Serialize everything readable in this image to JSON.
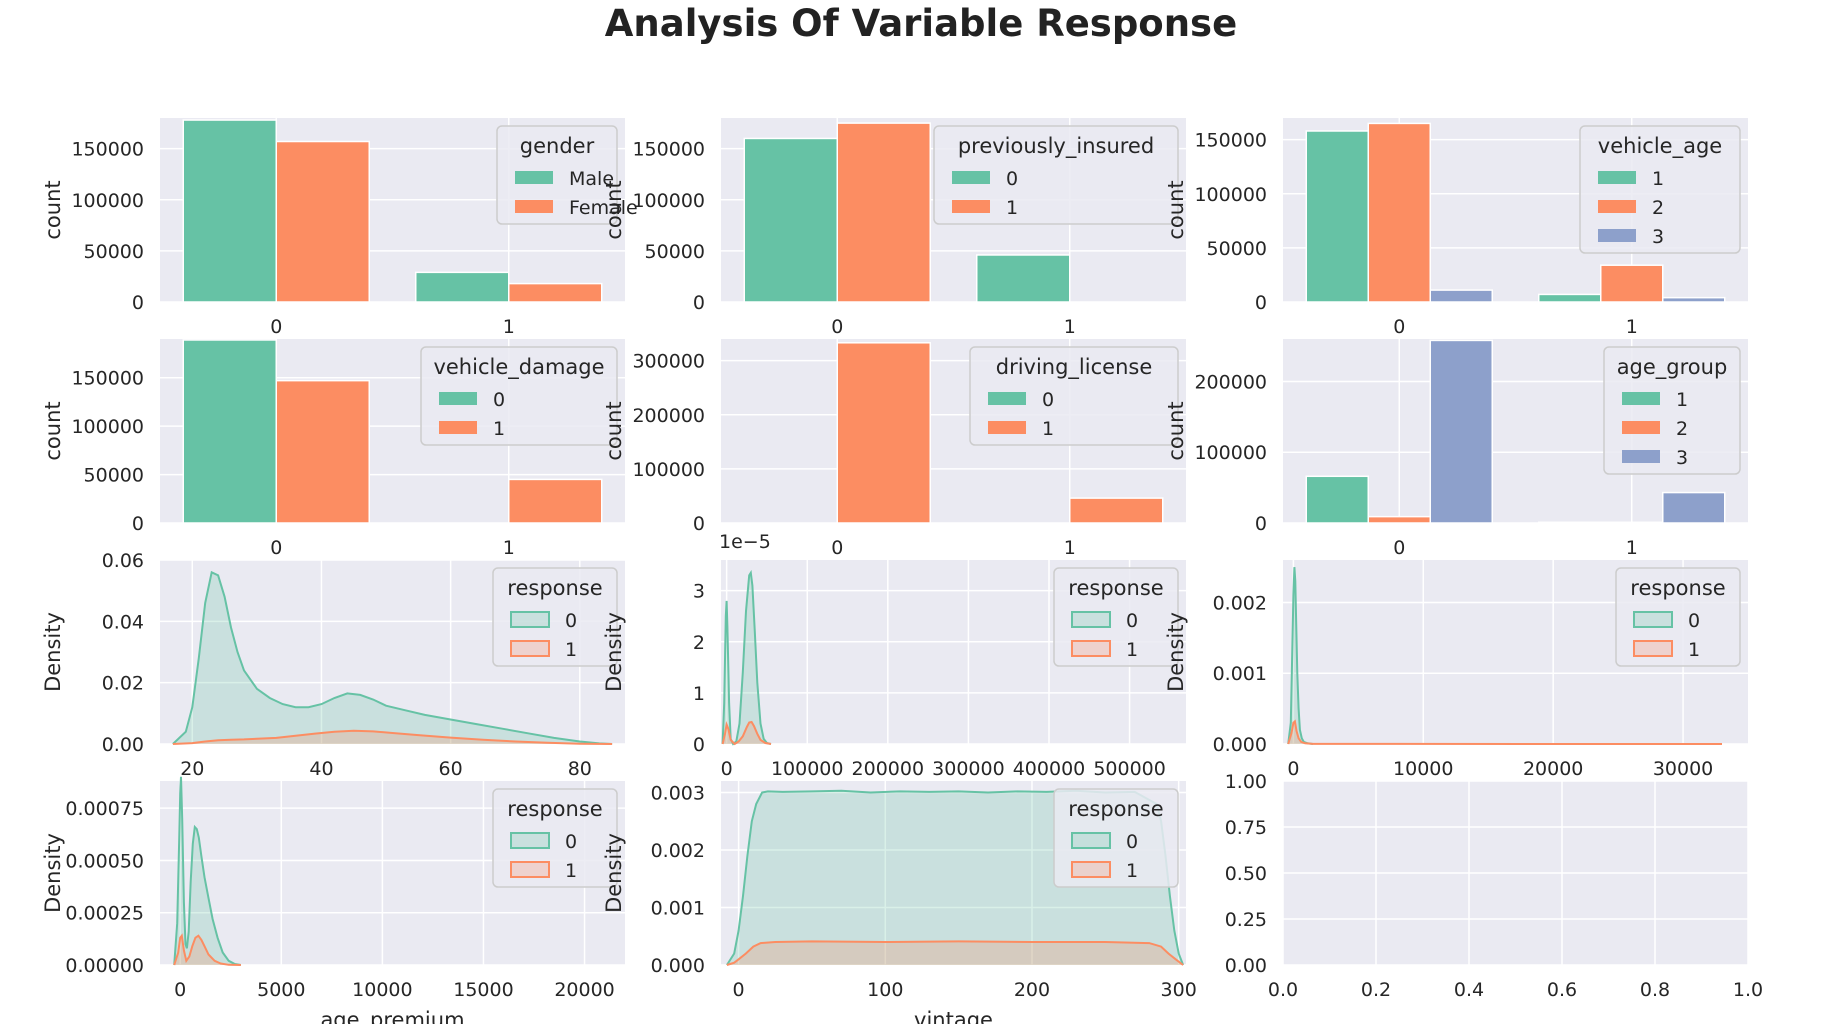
{
  "title": "Analysis Of Variable Response",
  "colors": {
    "c0": "#66c2a5",
    "c1": "#fc8d62",
    "c2": "#8da0cb",
    "panel": "#eaeaf2",
    "grid": "#ffffff",
    "text": "#262626"
  },
  "chart_data": [
    {
      "id": "gender",
      "type": "bar",
      "categories": [
        "0",
        "1"
      ],
      "ylabel": "count",
      "ylim": [
        0,
        180000
      ],
      "yticks": [
        "0",
        "50000",
        "100000",
        "150000"
      ],
      "grid": true,
      "legend_placement": "top-right",
      "legend": {
        "title": "gender",
        "entries": [
          "Male",
          "Female"
        ]
      },
      "series": [
        {
          "name": "Male",
          "values": [
            178000,
            29000
          ]
        },
        {
          "name": "Female",
          "values": [
            157000,
            18000
          ]
        }
      ]
    },
    {
      "id": "previously_insured",
      "type": "bar",
      "categories": [
        "0",
        "1"
      ],
      "ylabel": "count",
      "ylim": [
        0,
        180000
      ],
      "yticks": [
        "0",
        "50000",
        "100000",
        "150000"
      ],
      "grid": true,
      "legend_placement": "top-right",
      "legend": {
        "title": "previously_insured",
        "entries": [
          "0",
          "1"
        ]
      },
      "series": [
        {
          "name": "0",
          "values": [
            160000,
            46000
          ]
        },
        {
          "name": "1",
          "values": [
            175000,
            0
          ]
        }
      ]
    },
    {
      "id": "vehicle_age",
      "type": "bar",
      "categories": [
        "0",
        "1"
      ],
      "ylabel": "count",
      "ylim": [
        0,
        170000
      ],
      "yticks": [
        "0",
        "50000",
        "100000",
        "150000"
      ],
      "grid": true,
      "legend_placement": "top-right",
      "legend": {
        "title": "vehicle_age",
        "entries": [
          "1",
          "2",
          "3"
        ]
      },
      "series": [
        {
          "name": "1",
          "values": [
            158000,
            7000
          ]
        },
        {
          "name": "2",
          "values": [
            165000,
            34000
          ]
        },
        {
          "name": "3",
          "values": [
            11000,
            4000
          ]
        }
      ]
    },
    {
      "id": "vehicle_damage",
      "type": "bar",
      "categories": [
        "0",
        "1"
      ],
      "ylabel": "count",
      "ylim": [
        0,
        190000
      ],
      "yticks": [
        "0",
        "50000",
        "100000",
        "150000"
      ],
      "grid": true,
      "legend_placement": "top-right",
      "legend": {
        "title": "vehicle_damage",
        "entries": [
          "0",
          "1"
        ]
      },
      "series": [
        {
          "name": "0",
          "values": [
            189000,
            0
          ]
        },
        {
          "name": "1",
          "values": [
            147000,
            45000
          ]
        }
      ]
    },
    {
      "id": "driving_license",
      "type": "bar",
      "categories": [
        "0",
        "1"
      ],
      "ylabel": "count",
      "ylim": [
        0,
        340000
      ],
      "yticks": [
        "0",
        "100000",
        "200000",
        "300000"
      ],
      "grid": true,
      "legend_placement": "top-right",
      "legend": {
        "title": "driving_license",
        "entries": [
          "0",
          "1"
        ]
      },
      "series": [
        {
          "name": "0",
          "values": [
            0,
            0
          ]
        },
        {
          "name": "1",
          "values": [
            333000,
            46000
          ]
        }
      ]
    },
    {
      "id": "age_group",
      "type": "bar",
      "categories": [
        "0",
        "1"
      ],
      "ylabel": "count",
      "ylim": [
        0,
        260000
      ],
      "yticks": [
        "0",
        "100000",
        "200000"
      ],
      "grid": true,
      "legend_placement": "top-right",
      "legend": {
        "title": "age_group",
        "entries": [
          "1",
          "2",
          "3"
        ]
      },
      "series": [
        {
          "name": "1",
          "values": [
            66000,
            1000
          ]
        },
        {
          "name": "2",
          "values": [
            9000,
            1000
          ]
        },
        {
          "name": "3",
          "values": [
            258000,
            43000
          ]
        }
      ]
    },
    {
      "id": "age",
      "type": "area",
      "ylabel": "Density",
      "xlim": [
        15,
        87
      ],
      "ylim": [
        0,
        0.06
      ],
      "xticks": [
        20,
        40,
        60,
        80
      ],
      "xtick_labels": [
        "20",
        "40",
        "60",
        "80"
      ],
      "yticks": [
        0,
        0.02,
        0.04,
        0.06
      ],
      "ytick_labels": [
        "0.00",
        "0.02",
        "0.04",
        "0.06"
      ],
      "grid": true,
      "legend_placement": "top-right",
      "legend": {
        "title": "response",
        "entries": [
          "0",
          "1"
        ]
      },
      "series": [
        {
          "name": "0",
          "x": [
            17,
            19,
            20,
            21,
            22,
            23,
            24,
            25,
            26,
            27,
            28,
            30,
            32,
            34,
            36,
            38,
            40,
            42,
            44,
            46,
            48,
            50,
            53,
            56,
            60,
            64,
            68,
            72,
            76,
            80,
            83,
            85
          ],
          "y": [
            0,
            0.004,
            0.012,
            0.028,
            0.046,
            0.056,
            0.055,
            0.048,
            0.038,
            0.03,
            0.024,
            0.018,
            0.015,
            0.013,
            0.012,
            0.012,
            0.013,
            0.015,
            0.0165,
            0.016,
            0.0145,
            0.0125,
            0.011,
            0.0095,
            0.008,
            0.0065,
            0.005,
            0.0035,
            0.002,
            0.0008,
            0.0002,
            0
          ]
        },
        {
          "name": "1",
          "x": [
            17,
            20,
            22,
            24,
            26,
            28,
            30,
            33,
            36,
            39,
            42,
            45,
            48,
            51,
            55,
            60,
            65,
            70,
            75,
            80,
            85
          ],
          "y": [
            0,
            0.0003,
            0.0008,
            0.0012,
            0.0014,
            0.0015,
            0.0017,
            0.002,
            0.0027,
            0.0034,
            0.004,
            0.0043,
            0.0041,
            0.0036,
            0.0029,
            0.0021,
            0.0014,
            0.0008,
            0.0004,
            0.0001,
            0
          ]
        }
      ]
    },
    {
      "id": "region_code",
      "type": "area",
      "ylabel": "Density",
      "offset_text": "1e−5",
      "xlim": [
        -7000,
        570000
      ],
      "ylim": [
        0,
        3.6
      ],
      "xticks": [
        0,
        100000,
        200000,
        300000,
        400000,
        500000
      ],
      "xtick_labels": [
        "0",
        "100000",
        "200000",
        "300000",
        "400000",
        "500000"
      ],
      "yticks": [
        0,
        1,
        2,
        3
      ],
      "ytick_labels": [
        "0",
        "1",
        "2",
        "3"
      ],
      "grid": true,
      "legend_placement": "top-right",
      "legend": {
        "title": "response",
        "entries": [
          "0",
          "1"
        ]
      },
      "series": [
        {
          "name": "0",
          "x": [
            -5000,
            -3000,
            -1000,
            0,
            1000,
            3000,
            5000,
            8000,
            12000,
            16000,
            20000,
            24000,
            28000,
            30000,
            32000,
            35000,
            38000,
            42000,
            46000,
            50000,
            55000
          ],
          "y": [
            0,
            0.8,
            2.5,
            2.8,
            2.3,
            0.8,
            0.1,
            0,
            0.05,
            0.4,
            1.4,
            2.6,
            3.3,
            3.35,
            3.1,
            2.2,
            1.2,
            0.4,
            0.1,
            0.02,
            0
          ]
        },
        {
          "name": "1",
          "x": [
            -5000,
            -2000,
            0,
            2000,
            5000,
            10000,
            15000,
            20000,
            25000,
            28000,
            31000,
            34000,
            38000,
            42000,
            48000,
            55000
          ],
          "y": [
            0,
            0.2,
            0.38,
            0.3,
            0.08,
            0,
            0.05,
            0.15,
            0.33,
            0.42,
            0.43,
            0.35,
            0.2,
            0.08,
            0.02,
            0
          ]
        }
      ]
    },
    {
      "id": "policy_sales_channel",
      "type": "area",
      "ylabel": "Density",
      "xlim": [
        -800,
        35000
      ],
      "ylim": [
        0,
        0.0026
      ],
      "xticks": [
        0,
        10000,
        20000,
        30000
      ],
      "xtick_labels": [
        "0",
        "10000",
        "20000",
        "30000"
      ],
      "yticks": [
        0,
        0.001,
        0.002
      ],
      "ytick_labels": [
        "0.000",
        "0.001",
        "0.002"
      ],
      "grid": true,
      "legend_placement": "top-right",
      "legend": {
        "title": "response",
        "entries": [
          "0",
          "1"
        ]
      },
      "series": [
        {
          "name": "0",
          "x": [
            -400,
            -200,
            -100,
            0,
            80,
            150,
            220,
            300,
            400,
            500,
            650,
            800,
            1100,
            1500
          ],
          "y": [
            0,
            0.0003,
            0.0012,
            0.0021,
            0.0025,
            0.0023,
            0.0017,
            0.001,
            0.0005,
            0.0002,
            8e-05,
            3e-05,
            1e-05,
            0
          ]
        },
        {
          "name": "1",
          "x": [
            -400,
            -150,
            0,
            120,
            250,
            400,
            600,
            900,
            1500,
            33000
          ],
          "y": [
            0,
            0.00015,
            0.0003,
            0.00032,
            0.00018,
            8e-05,
            3e-05,
            1e-05,
            2e-06,
            0
          ]
        }
      ]
    },
    {
      "id": "age_premium",
      "type": "area",
      "ylabel": "Density",
      "xlabel": "age_premium",
      "xlim": [
        -1000,
        22000
      ],
      "ylim": [
        0,
        0.00088
      ],
      "xticks": [
        0,
        5000,
        10000,
        15000,
        20000
      ],
      "xtick_labels": [
        "0",
        "5000",
        "10000",
        "15000",
        "20000"
      ],
      "yticks": [
        0,
        0.00025,
        0.0005,
        0.00075
      ],
      "ytick_labels": [
        "0.00000",
        "0.00025",
        "0.00050",
        "0.00075"
      ],
      "grid": true,
      "legend_placement": "top-right",
      "legend": {
        "title": "response",
        "entries": [
          "0",
          "1"
        ]
      },
      "series": [
        {
          "name": "0",
          "x": [
            -300,
            -150,
            -50,
            0,
            40,
            100,
            180,
            260,
            330,
            420,
            520,
            620,
            720,
            820,
            920,
            1050,
            1200,
            1400,
            1600,
            1850,
            2100,
            2400,
            2700,
            3000
          ],
          "y": [
            0,
            0.0002,
            0.0006,
            0.00082,
            0.0009,
            0.0007,
            0.0003,
            0.0001,
            8e-05,
            0.00016,
            0.0004,
            0.00058,
            0.00066,
            0.00065,
            0.00061,
            0.00052,
            0.00042,
            0.00032,
            0.00022,
            0.00013,
            6e-05,
            2e-05,
            5e-06,
            0
          ]
        },
        {
          "name": "1",
          "x": [
            -300,
            -100,
            0,
            80,
            180,
            300,
            450,
            600,
            750,
            900,
            1050,
            1200,
            1400,
            1700,
            2000,
            2400,
            3000
          ],
          "y": [
            0,
            6e-05,
            0.00013,
            0.00014,
            7e-05,
            2e-05,
            4e-05,
            9e-05,
            0.00013,
            0.00014,
            0.00012,
            9e-05,
            5e-05,
            2e-05,
            7e-06,
            1e-06,
            0
          ]
        }
      ]
    },
    {
      "id": "vintage",
      "type": "area",
      "ylabel": "Density",
      "xlabel": "vintage",
      "xlim": [
        -12,
        305
      ],
      "ylim": [
        0,
        0.0032
      ],
      "xticks": [
        0,
        100,
        200,
        300
      ],
      "xtick_labels": [
        "0",
        "100",
        "200",
        "300"
      ],
      "yticks": [
        0,
        0.001,
        0.002,
        0.003
      ],
      "ytick_labels": [
        "0.000",
        "0.001",
        "0.002",
        "0.003"
      ],
      "grid": true,
      "legend_placement": "top-right",
      "legend": {
        "title": "response",
        "entries": [
          "0",
          "1"
        ]
      },
      "series": [
        {
          "name": "0",
          "x": [
            -8,
            -3,
            0,
            3,
            6,
            9,
            12,
            16,
            20,
            30,
            50,
            70,
            90,
            110,
            130,
            150,
            170,
            190,
            210,
            230,
            250,
            270,
            285,
            288,
            291,
            294,
            297,
            300,
            303
          ],
          "y": [
            0,
            0.0002,
            0.0006,
            0.0012,
            0.0019,
            0.0025,
            0.0028,
            0.003,
            0.00302,
            0.00301,
            0.00302,
            0.00303,
            0.003,
            0.00302,
            0.00301,
            0.00302,
            0.003,
            0.00302,
            0.00301,
            0.00303,
            0.003,
            0.00301,
            0.0028,
            0.0025,
            0.0019,
            0.0012,
            0.0006,
            0.0002,
            0
          ]
        },
        {
          "name": "1",
          "x": [
            -8,
            -3,
            0,
            5,
            10,
            15,
            25,
            50,
            100,
            150,
            200,
            250,
            280,
            288,
            293,
            298,
            303
          ],
          "y": [
            0,
            4e-05,
            0.0001,
            0.0002,
            0.00032,
            0.00038,
            0.0004,
            0.00041,
            0.0004,
            0.00041,
            0.0004,
            0.0004,
            0.00038,
            0.00032,
            0.0002,
            0.0001,
            0
          ]
        }
      ]
    },
    {
      "id": "empty",
      "type": "empty",
      "xlim": [
        0,
        1
      ],
      "ylim": [
        0,
        1
      ],
      "xticks": [
        0,
        0.2,
        0.4,
        0.6,
        0.8,
        1.0
      ],
      "xtick_labels": [
        "0.0",
        "0.2",
        "0.4",
        "0.6",
        "0.8",
        "1.0"
      ],
      "yticks": [
        0,
        0.25,
        0.5,
        0.75,
        1.0
      ],
      "ytick_labels": [
        "0.00",
        "0.25",
        "0.50",
        "0.75",
        "1.00"
      ],
      "grid": true
    }
  ]
}
